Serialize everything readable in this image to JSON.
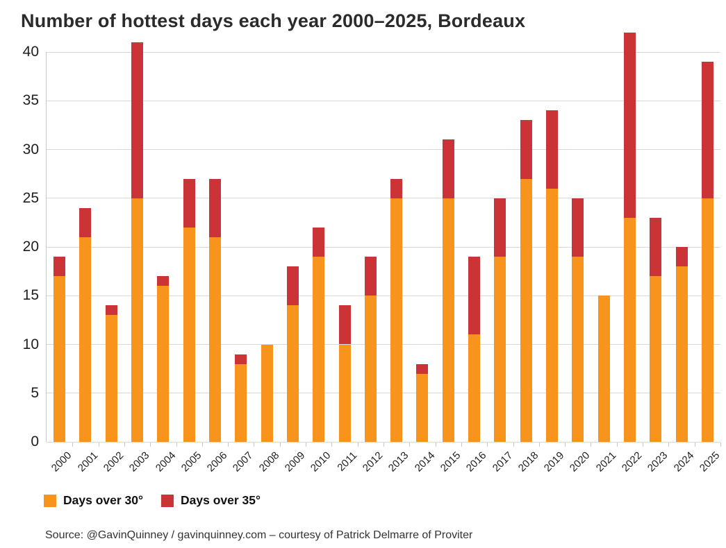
{
  "title": "Number of hottest days each year 2000–2025, Bordeaux",
  "source": "Source: @GavinQuinney / gavinquinney.com  –  courtesy of Patrick Delmarre of Proviter",
  "colors": {
    "orange": "#F7941E",
    "red": "#CB3437",
    "gridline": "#D8D8D8",
    "axis": "#C9C9C9",
    "text": "#1E1E1E"
  },
  "chart_data": {
    "type": "bar",
    "stacked": true,
    "title": "Number of hottest days each year 2000–2025, Bordeaux",
    "categories": [
      "2000",
      "2001",
      "2002",
      "2003",
      "2004",
      "2005",
      "2006",
      "2007",
      "2008",
      "2009",
      "2010",
      "2011",
      "2012",
      "2013",
      "2014",
      "2015",
      "2016",
      "2017",
      "2018",
      "2019",
      "2020",
      "2021",
      "2022",
      "2023",
      "2024",
      "2025"
    ],
    "series": [
      {
        "name": "Days over 30°",
        "color": "#F7941E",
        "values": [
          17,
          21,
          13,
          25,
          16,
          22,
          21,
          8,
          10,
          14,
          19,
          10,
          15,
          25,
          7,
          25,
          11,
          19,
          27,
          26,
          19,
          15,
          23,
          17,
          18,
          25
        ]
      },
      {
        "name": "Days over 35°",
        "color": "#CB3437",
        "values": [
          2,
          3,
          1,
          16,
          1,
          5,
          6,
          1,
          0,
          4,
          3,
          4,
          4,
          2,
          1,
          6,
          8,
          6,
          6,
          8,
          6,
          0,
          19,
          6,
          2,
          14
        ]
      }
    ],
    "totals": [
      19,
      24,
      14,
      41,
      17,
      27,
      27,
      9,
      10,
      18,
      22,
      14,
      19,
      27,
      8,
      31,
      19,
      25,
      33,
      34,
      25,
      15,
      42,
      23,
      20,
      39
    ],
    "xlabel": "",
    "ylabel": "",
    "ylim": [
      0,
      40
    ],
    "y_ticks": [
      0,
      5,
      10,
      15,
      20,
      25,
      30,
      35,
      40
    ],
    "grid": true,
    "legend_position": "bottom"
  }
}
